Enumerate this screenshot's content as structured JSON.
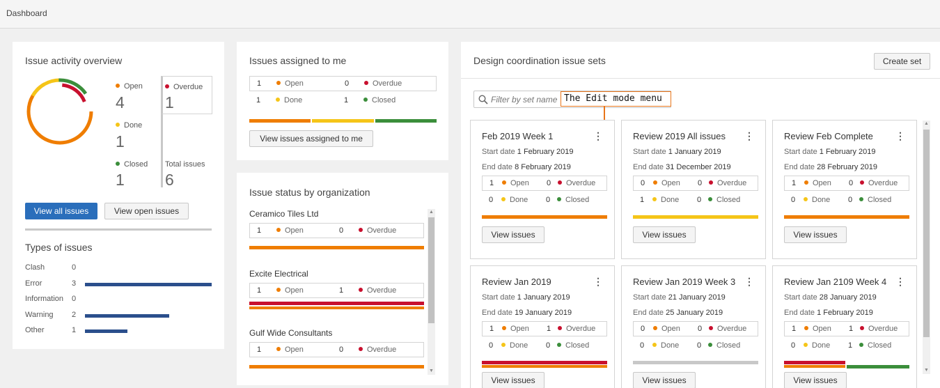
{
  "breadcrumb": "Dashboard",
  "issue_activity": {
    "title": "Issue activity overview",
    "open": {
      "label": "Open",
      "count": "4"
    },
    "overdue": {
      "label": "Overdue",
      "count": "1"
    },
    "done": {
      "label": "Done",
      "count": "1"
    },
    "closed": {
      "label": "Closed",
      "count": "1"
    },
    "total": {
      "label": "Total issues",
      "count": "6"
    },
    "view_all": "View all issues",
    "view_open": "View open issues",
    "types_title": "Types of issues",
    "types": [
      {
        "name": "Clash",
        "count": "0",
        "value": 0
      },
      {
        "name": "Error",
        "count": "3",
        "value": 3
      },
      {
        "name": "Information",
        "count": "0",
        "value": 0
      },
      {
        "name": "Warning",
        "count": "2",
        "value": 2
      },
      {
        "name": "Other",
        "count": "1",
        "value": 1
      }
    ]
  },
  "assigned": {
    "title": "Issues assigned to me",
    "open": "1",
    "open_label": "Open",
    "overdue": "0",
    "overdue_label": "Overdue",
    "done": "1",
    "done_label": "Done",
    "closed": "1",
    "closed_label": "Closed",
    "button": "View issues assigned to me"
  },
  "by_org": {
    "title": "Issue status by organization",
    "orgs": [
      {
        "name": "Ceramico Tiles Ltd",
        "open": "1",
        "overdue": "0",
        "open_label": "Open",
        "overdue_label": "Overdue"
      },
      {
        "name": "Excite Electrical",
        "open": "1",
        "overdue": "1",
        "open_label": "Open",
        "overdue_label": "Overdue"
      },
      {
        "name": "Gulf Wide Consultants",
        "open": "1",
        "overdue": "0",
        "open_label": "Open",
        "overdue_label": "Overdue"
      }
    ]
  },
  "sets": {
    "title": "Design coordination issue sets",
    "create": "Create set",
    "filter_placeholder": "Filter by set name",
    "callout": "The Edit mode menu",
    "start_label": "Start date",
    "end_label": "End date",
    "view_label": "View issues",
    "open_label": "Open",
    "overdue_label": "Overdue",
    "done_label": "Done",
    "closed_label": "Closed",
    "cards": [
      {
        "name": "Feb 2019 Week 1",
        "start": "1 February 2019",
        "end": "8 February 2019",
        "open": "1",
        "overdue": "0",
        "done": "0",
        "closed": "0"
      },
      {
        "name": "Review 2019 All issues",
        "start": "1 January 2019",
        "end": "31 December 2019",
        "open": "0",
        "overdue": "0",
        "done": "1",
        "closed": "0"
      },
      {
        "name": "Review Feb Complete",
        "start": "1 February 2019",
        "end": "28 February 2019",
        "open": "1",
        "overdue": "0",
        "done": "0",
        "closed": "0"
      },
      {
        "name": "Review Jan 2019",
        "start": "1 January 2019",
        "end": "19 January 2019",
        "open": "1",
        "overdue": "1",
        "done": "0",
        "closed": "0"
      },
      {
        "name": "Review Jan 2019 Week 3",
        "start": "21 January 2019",
        "end": "25 January 2019",
        "open": "0",
        "overdue": "0",
        "done": "0",
        "closed": "0"
      },
      {
        "name": "Review Jan 2109 Week 4",
        "start": "28 January 2019",
        "end": "1 February 2019",
        "open": "1",
        "overdue": "1",
        "done": "0",
        "closed": "1"
      }
    ]
  },
  "colors": {
    "open": "#ef7d00",
    "overdue": "#c8102e",
    "done": "#f5c518",
    "closed": "#3b8e3b",
    "primary": "#2a6ebb",
    "bar": "#2b4f8c"
  },
  "icons": {
    "search": "search-icon",
    "menu": "kebab-menu-icon"
  }
}
